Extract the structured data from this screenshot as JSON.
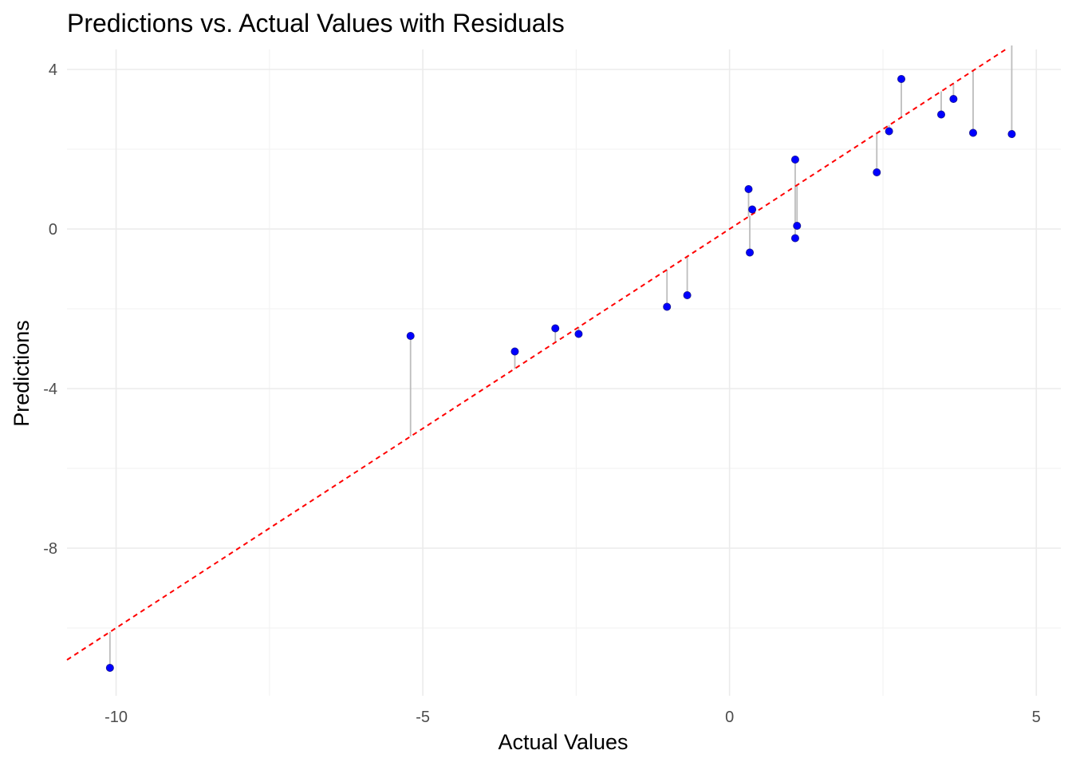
{
  "chart_data": {
    "type": "scatter",
    "title": "Predictions vs. Actual Values with Residuals",
    "xlabel": "Actual Values",
    "ylabel": "Predictions",
    "xlim": [
      -10.8,
      5.4
    ],
    "ylim": [
      -11.7,
      4.5
    ],
    "x_ticks": [
      -10,
      -5,
      0,
      5
    ],
    "x_tick_labels": [
      "-10",
      "-5",
      "0",
      "5"
    ],
    "y_ticks": [
      -8,
      -4,
      0,
      4
    ],
    "y_tick_labels": [
      "-8",
      "-4",
      "0",
      "4"
    ],
    "grid": true,
    "legend": "none",
    "point_color": "#0000ff",
    "residual_color": "#bdbdbd",
    "reference_line": {
      "slope": 1,
      "intercept": 0,
      "style": "dashed",
      "color": "#ff0000"
    },
    "series": [
      {
        "points": [
          {
            "x": -10.1,
            "y": -11.0
          },
          {
            "x": -5.2,
            "y": -2.68
          },
          {
            "x": -3.5,
            "y": -3.07
          },
          {
            "x": -2.84,
            "y": -2.49
          },
          {
            "x": -2.46,
            "y": -2.63
          },
          {
            "x": -1.02,
            "y": -1.95
          },
          {
            "x": -0.69,
            "y": -1.66
          },
          {
            "x": 0.31,
            "y": 1.0
          },
          {
            "x": 0.33,
            "y": -0.59
          },
          {
            "x": 0.37,
            "y": 0.49
          },
          {
            "x": 1.07,
            "y": 1.74
          },
          {
            "x": 1.07,
            "y": -0.23
          },
          {
            "x": 1.1,
            "y": 0.08
          },
          {
            "x": 2.4,
            "y": 1.42
          },
          {
            "x": 2.6,
            "y": 2.45
          },
          {
            "x": 2.8,
            "y": 3.76
          },
          {
            "x": 3.45,
            "y": 2.87
          },
          {
            "x": 3.65,
            "y": 3.26
          },
          {
            "x": 3.97,
            "y": 2.41
          },
          {
            "x": 4.6,
            "y": 2.38
          }
        ]
      }
    ]
  }
}
